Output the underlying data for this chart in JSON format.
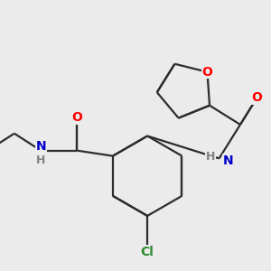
{
  "background_color": "#ebebeb",
  "bond_color": "#2d2d2d",
  "atom_colors": {
    "O": "#ff0000",
    "N": "#0000cc",
    "Cl": "#2e8b2e",
    "H": "#808080"
  },
  "figsize": [
    3.0,
    3.0
  ],
  "dpi": 100
}
